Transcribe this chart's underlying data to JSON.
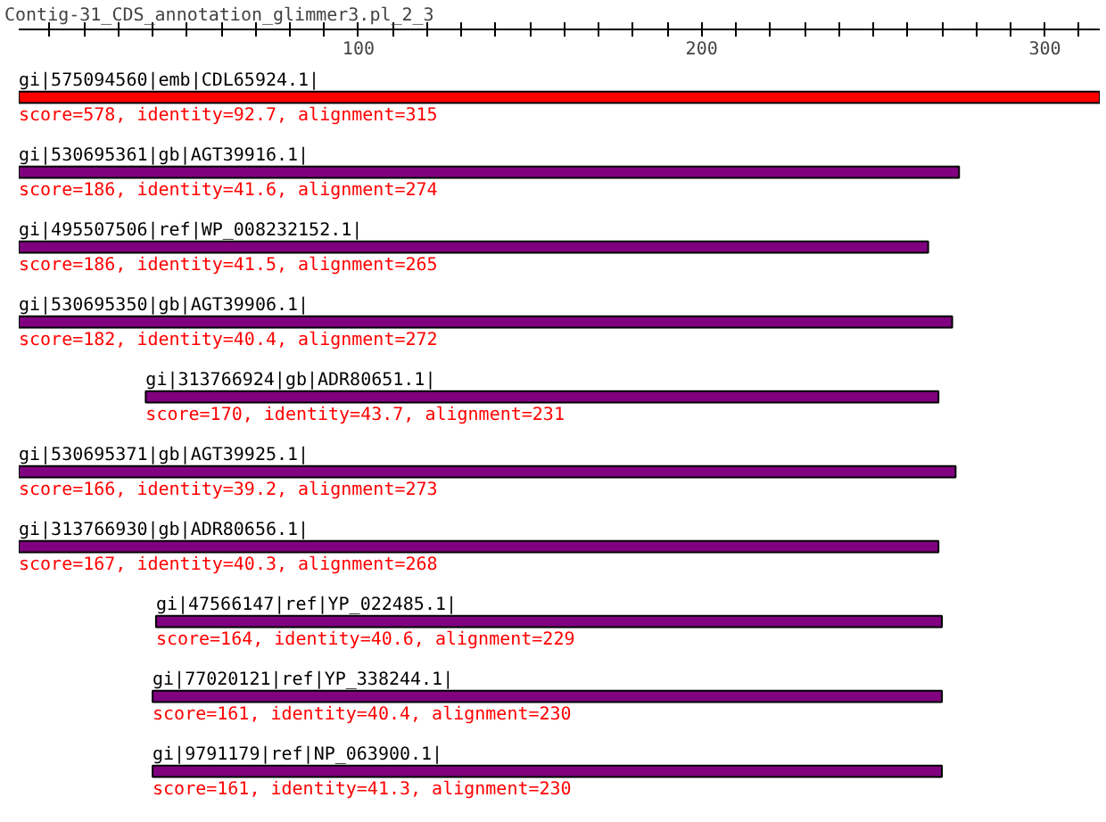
{
  "chart_data": {
    "type": "bar",
    "orientation": "horizontal",
    "title": "Contig-31_CDS_annotation_glimmer3.pl_2_3",
    "categories": [
      "gi|575094560|emb|CDL65924.1|",
      "gi|530695361|gb|AGT39916.1|",
      "gi|495507506|ref|WP_008232152.1|",
      "gi|530695350|gb|AGT39906.1|",
      "gi|313766924|gb|ADR80651.1|",
      "gi|530695371|gb|AGT39925.1|",
      "gi|313766930|gb|ADR80656.1|",
      "gi|47566147|ref|YP_022485.1|",
      "gi|77020121|ref|YP_338244.1|",
      "gi|9791179|ref|NP_063900.1|"
    ],
    "values": [
      315,
      274,
      265,
      272,
      231,
      273,
      268,
      229,
      230,
      230
    ],
    "base": [
      1,
      1,
      1,
      1,
      38,
      1,
      1,
      41,
      40,
      40
    ],
    "colors": [
      "#ff0000",
      "#800080",
      "#800080",
      "#800080",
      "#800080",
      "#800080",
      "#800080",
      "#800080",
      "#800080",
      "#800080"
    ],
    "value_labels": [
      "score=578, identity=92.7, alignment=315",
      "score=186, identity=41.6, alignment=274",
      "score=186, identity=41.5, alignment=265",
      "score=182, identity=40.4, alignment=272",
      "score=170, identity=43.7, alignment=231",
      "score=166, identity=39.2, alignment=273",
      "score=167, identity=40.3, alignment=268",
      "score=164, identity=40.6, alignment=229",
      "score=161, identity=40.4, alignment=230",
      "score=161, identity=41.3, alignment=230"
    ],
    "xlim": [
      1,
      316
    ],
    "xticks": [
      {
        "value": 10,
        "label": null
      },
      {
        "value": 20,
        "label": null
      },
      {
        "value": 30,
        "label": null
      },
      {
        "value": 40,
        "label": null
      },
      {
        "value": 50,
        "label": null
      },
      {
        "value": 60,
        "label": null
      },
      {
        "value": 70,
        "label": null
      },
      {
        "value": 80,
        "label": null
      },
      {
        "value": 90,
        "label": null
      },
      100,
      {
        "value": 110,
        "label": null
      },
      {
        "value": 120,
        "label": null
      },
      {
        "value": 130,
        "label": null
      },
      {
        "value": 140,
        "label": null
      },
      {
        "value": 150,
        "label": null
      },
      {
        "value": 160,
        "label": null
      },
      {
        "value": 170,
        "label": null
      },
      {
        "value": 180,
        "label": null
      },
      {
        "value": 190,
        "label": null
      },
      200,
      {
        "value": 210,
        "label": null
      },
      {
        "value": 220,
        "label": null
      },
      {
        "value": 230,
        "label": null
      },
      {
        "value": 240,
        "label": null
      },
      {
        "value": 250,
        "label": null
      },
      {
        "value": 260,
        "label": null
      },
      {
        "value": 270,
        "label": null
      },
      {
        "value": 280,
        "label": null
      },
      {
        "value": 290,
        "label": null
      },
      300,
      {
        "value": 310,
        "label": null
      }
    ]
  }
}
